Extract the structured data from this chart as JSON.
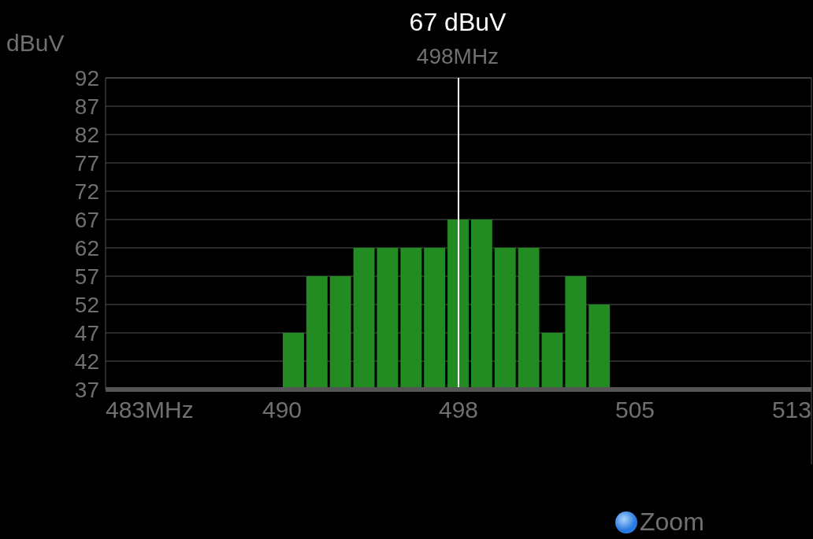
{
  "chart_data": {
    "type": "histogram",
    "title": "67 dBuV",
    "subtitle": "498MHz",
    "ylabel": "dBuV",
    "bins": [
      490.5,
      491.5,
      492.5,
      493.5,
      494.5,
      495.5,
      496.5,
      497.5,
      498.5,
      499.5,
      500.5,
      501.5,
      502.5,
      503.5,
      504.5
    ],
    "values": [
      47,
      57,
      57,
      62,
      62,
      62,
      62,
      67,
      67,
      62,
      62,
      47,
      57,
      52
    ],
    "color": "#228b22",
    "xlim": [
      483,
      513
    ],
    "xticks": [
      {
        "value": 483,
        "label": "483MHz"
      },
      {
        "value": 490.5,
        "label": "490"
      },
      {
        "value": 498,
        "label": "498"
      },
      {
        "value": 505.5,
        "label": "505"
      },
      {
        "value": 513,
        "label": "513"
      }
    ],
    "ylim": [
      37,
      92
    ],
    "yticks": [
      37,
      42,
      47,
      52,
      57,
      62,
      67,
      72,
      77,
      82,
      87,
      92
    ],
    "grid": "y",
    "ref_lines": [
      {
        "axis": "x",
        "value": 498,
        "color": "#ffffff"
      }
    ],
    "annotations": [
      "Zoom"
    ]
  }
}
